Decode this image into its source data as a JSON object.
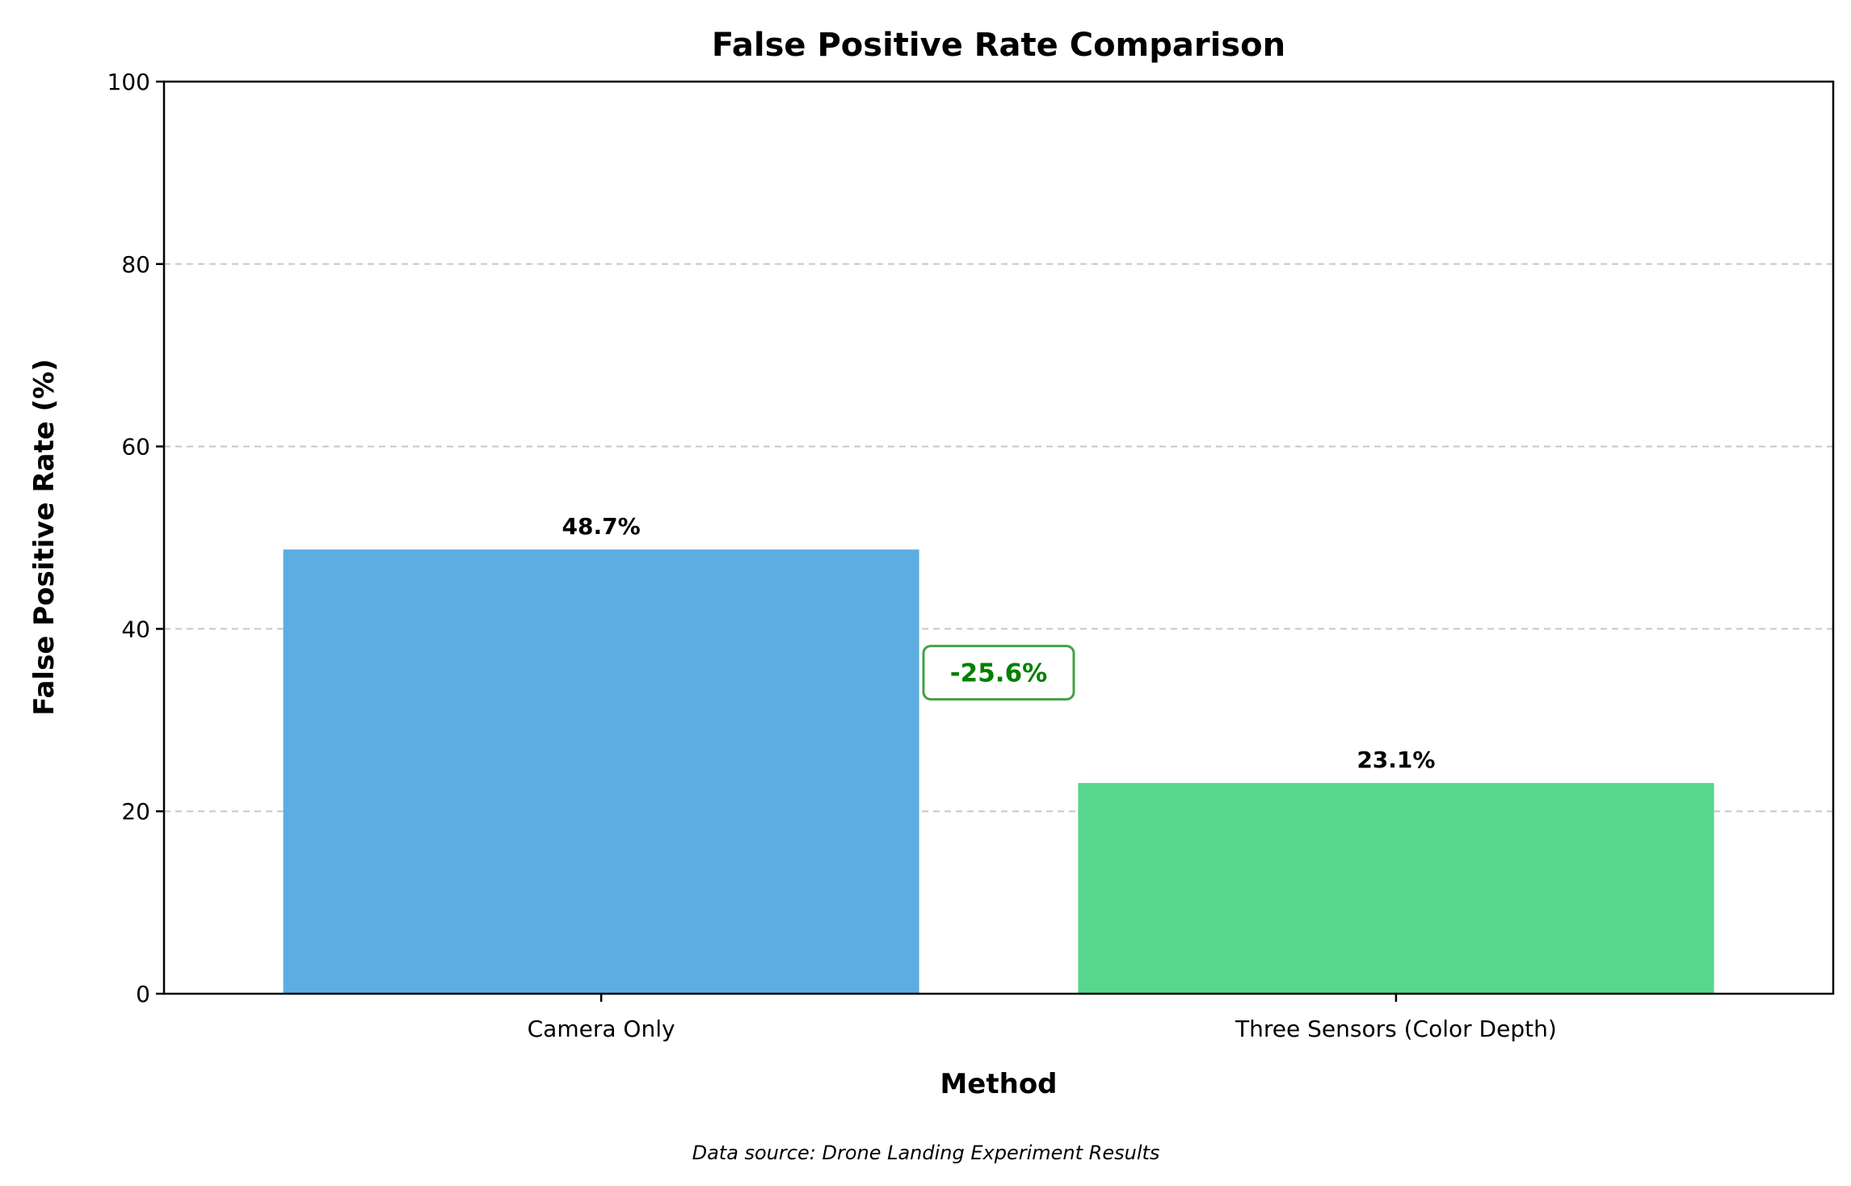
{
  "chart_data": {
    "type": "bar",
    "title": "False Positive Rate Comparison",
    "xlabel": "Method",
    "ylabel": "False Positive Rate (%)",
    "categories": [
      "Camera Only",
      "Three Sensors (Color Depth)"
    ],
    "values": [
      48.7,
      23.1
    ],
    "value_labels": [
      "48.7%",
      "23.1%"
    ],
    "colors": [
      "#5dade2",
      "#58d68d"
    ],
    "ylim": [
      0,
      100
    ],
    "yticks": [
      0,
      20,
      40,
      60,
      80,
      100
    ],
    "grid": "y, dashed",
    "annotation": {
      "text": "-25.6%",
      "y": 35.2,
      "color": "#008000"
    },
    "source_note": "Data source: Drone Landing Experiment Results"
  }
}
